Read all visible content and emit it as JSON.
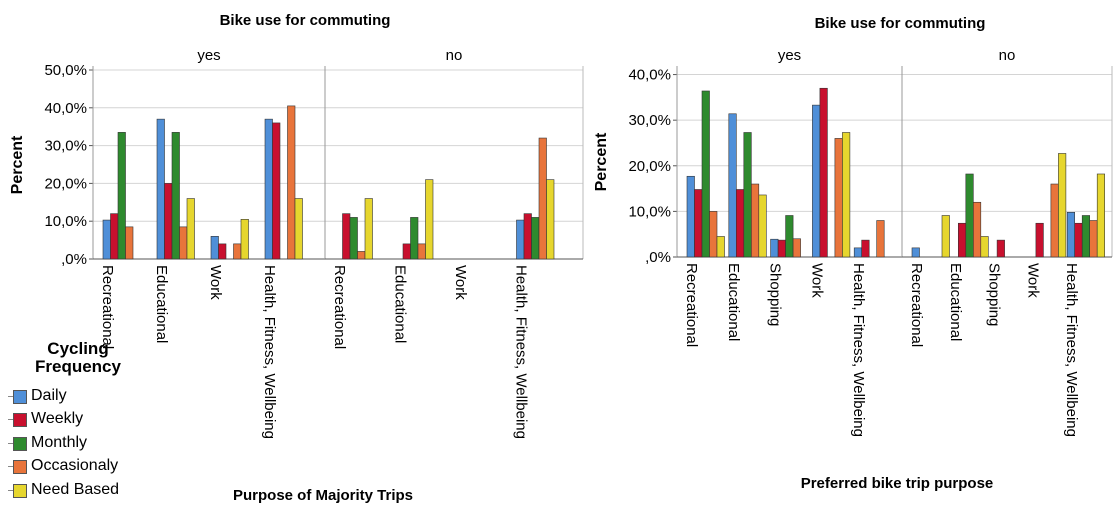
{
  "legend": {
    "title_line1": "Cycling",
    "title_line2": "Frequency",
    "items": [
      {
        "label": "Daily",
        "color": "#4f8fd8"
      },
      {
        "label": "Weekly",
        "color": "#c8102e"
      },
      {
        "label": "Monthly",
        "color": "#2e8a2e"
      },
      {
        "label": "Occasionaly",
        "color": "#e8743b"
      },
      {
        "label": "Need Based",
        "color": "#e6d62e"
      }
    ]
  },
  "chart_data": [
    {
      "type": "bar",
      "title": "Bike use for commuting",
      "xlabel": "Purpose of Majority Trips",
      "ylabel": "Percent",
      "ylim": [
        0,
        50
      ],
      "yticks": [
        ",0%",
        "10,0%",
        "20,0%",
        "30,0%",
        "40,0%",
        "50,0%"
      ],
      "grid": true,
      "series_names": [
        "Daily",
        "Weekly",
        "Monthly",
        "Occasionaly",
        "Need Based"
      ],
      "panels": [
        {
          "label": "yes",
          "categories": [
            "Recreational",
            "Educational",
            "Work",
            "Health, Fitness, Wellbeing"
          ],
          "values": [
            [
              10.3,
              12.0,
              33.5,
              8.5,
              null
            ],
            [
              37.0,
              20.0,
              33.5,
              8.5,
              16.0
            ],
            [
              6.0,
              4.0,
              null,
              4.0,
              10.5
            ],
            [
              37.0,
              36.0,
              null,
              40.5,
              16.0
            ]
          ]
        },
        {
          "label": "no",
          "categories": [
            "Recreational",
            "Educational",
            "Work",
            "Health, Fitness, Wellbeing"
          ],
          "values": [
            [
              null,
              12.0,
              11.0,
              2.0,
              16.0
            ],
            [
              null,
              4.0,
              11.0,
              4.0,
              21.0
            ],
            [
              null,
              null,
              null,
              null,
              null
            ],
            [
              10.3,
              12.0,
              11.0,
              32.0,
              21.0
            ]
          ]
        }
      ]
    },
    {
      "type": "bar",
      "title": "Bike use for commuting",
      "xlabel": "Preferred bike trip purpose",
      "ylabel": "Percent",
      "ylim": [
        0,
        41
      ],
      "yticks": [
        ",0%",
        "10,0%",
        "20,0%",
        "30,0%",
        "40,0%"
      ],
      "grid": true,
      "series_names": [
        "Daily",
        "Weekly",
        "Monthly",
        "Occasionaly",
        "Need Based"
      ],
      "panels": [
        {
          "label": "yes",
          "categories": [
            "Recreational",
            "Educational",
            "Shopping",
            "Work",
            "Health, Fitness, Wellbeing"
          ],
          "values": [
            [
              17.7,
              14.8,
              36.4,
              10.0,
              4.5
            ],
            [
              31.4,
              14.8,
              27.3,
              16.0,
              13.6
            ],
            [
              3.9,
              3.7,
              9.1,
              4.0,
              null
            ],
            [
              33.3,
              37.0,
              null,
              26.0,
              27.3
            ],
            [
              2.0,
              3.7,
              null,
              8.0,
              null
            ]
          ]
        },
        {
          "label": "no",
          "categories": [
            "Recreational",
            "Educational",
            "Shopping",
            "Work",
            "Health, Fitness, Wellbeing"
          ],
          "values": [
            [
              2.0,
              null,
              null,
              null,
              9.1
            ],
            [
              null,
              7.4,
              18.2,
              12.0,
              4.5
            ],
            [
              null,
              3.7,
              null,
              null,
              null
            ],
            [
              null,
              7.4,
              null,
              16.0,
              22.7
            ],
            [
              9.8,
              7.4,
              9.1,
              8.0,
              18.2
            ]
          ]
        }
      ]
    }
  ]
}
